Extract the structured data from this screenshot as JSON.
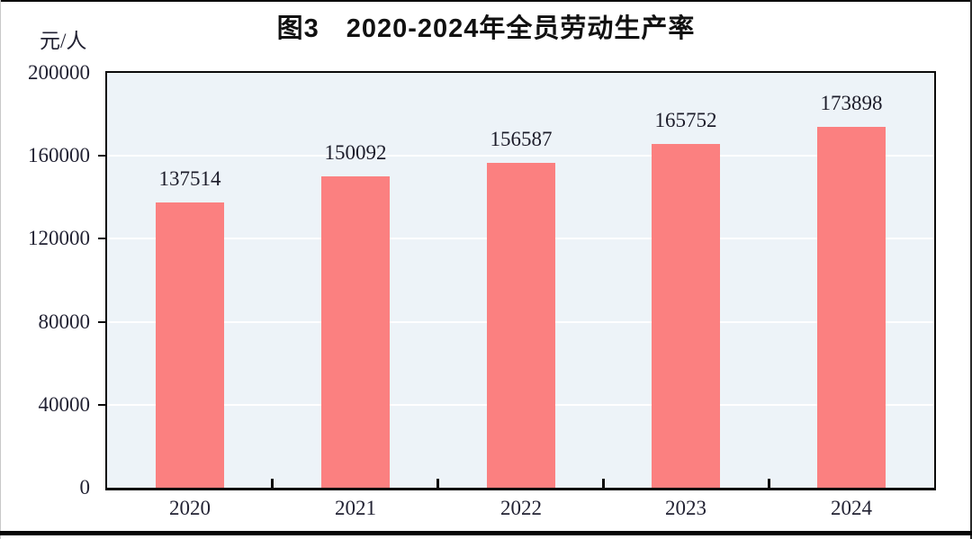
{
  "figure": {
    "title": "图3　2020-2024年全员劳动生产率",
    "unit_label": "元/人"
  },
  "chart_data": {
    "type": "bar",
    "title": "图3　2020-2024年全员劳动生产率",
    "categories": [
      "2020",
      "2021",
      "2022",
      "2023",
      "2024"
    ],
    "values": [
      137514,
      150092,
      156587,
      165752,
      173898
    ],
    "value_labels": [
      "137514",
      "150092",
      "156587",
      "165752",
      "173898"
    ],
    "xlabel": "",
    "ylabel": "元/人",
    "ylim": [
      0,
      200000
    ],
    "yticks": [
      0,
      40000,
      80000,
      120000,
      160000,
      200000
    ],
    "grid": true,
    "gridline_color": "#ffffff",
    "legend_position": "none",
    "colors": {
      "bar": "#fb8080",
      "plot_background": "#edf3f8",
      "axis": "#0b0b0b",
      "text": "#222233"
    }
  }
}
